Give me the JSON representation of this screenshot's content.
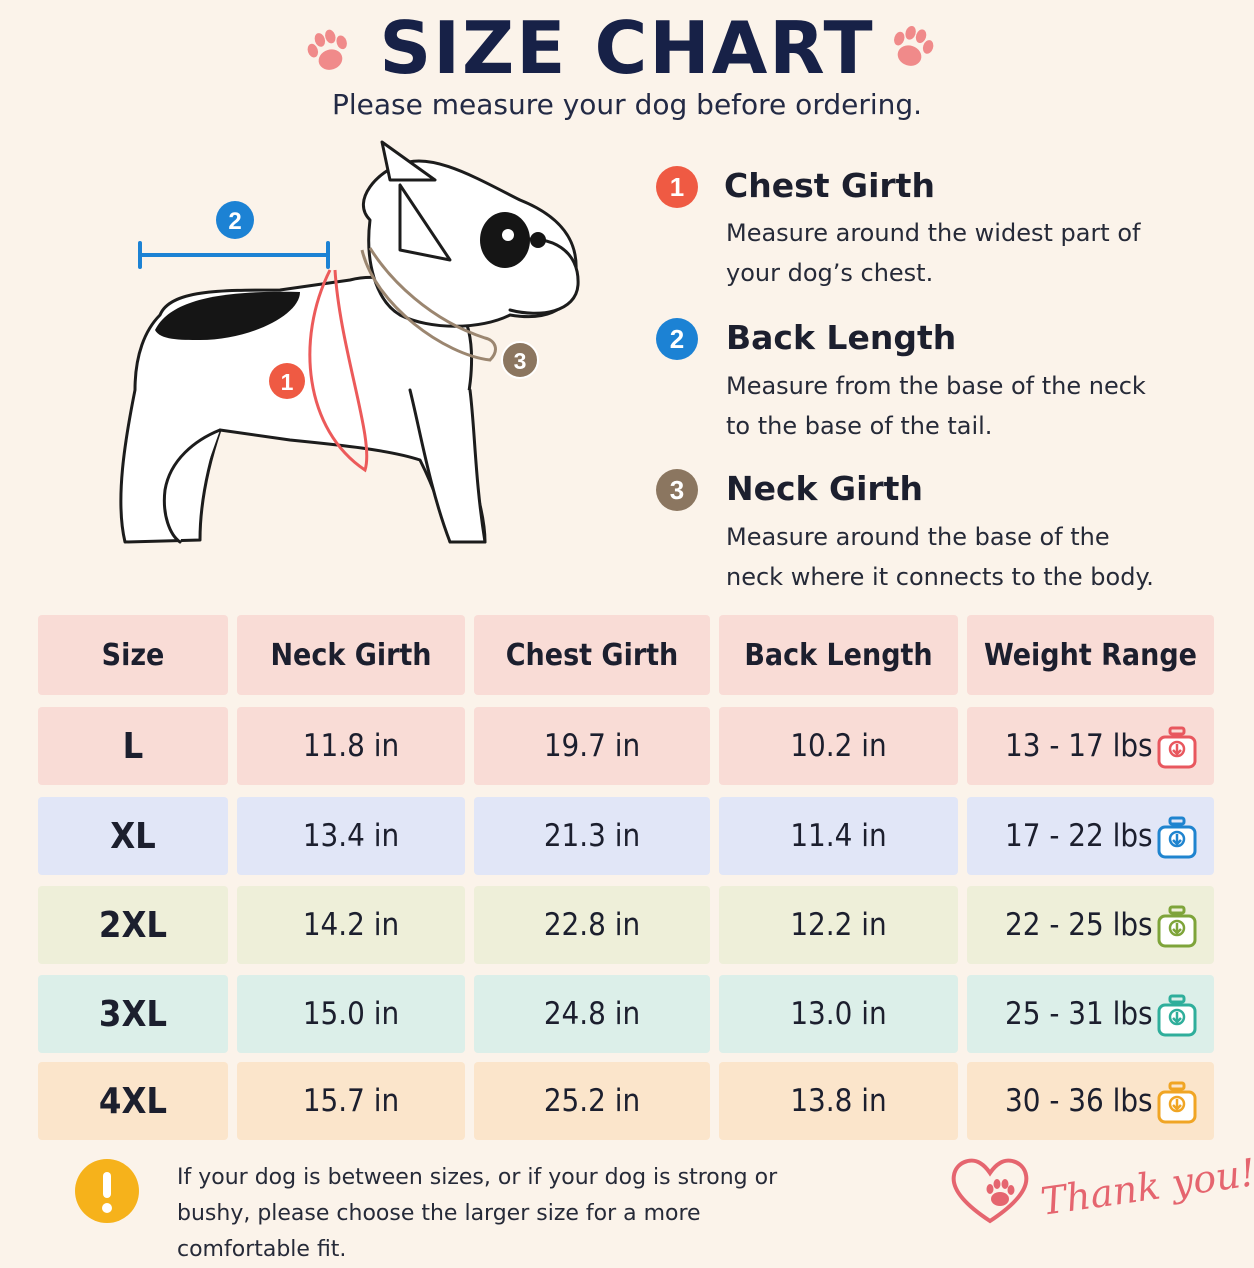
{
  "header": {
    "title": "SIZE CHART",
    "subtitle": "Please measure your dog before ordering."
  },
  "illustration": {
    "marker_1": "1",
    "marker_2": "2",
    "marker_3": "3"
  },
  "legend": [
    {
      "number": "1",
      "color": "#ef5a43",
      "title": "Chest Girth",
      "desc": "Measure around the widest part of your dog’s chest."
    },
    {
      "number": "2",
      "color": "#1c82d4",
      "title": "Back Length",
      "desc": "Measure from the base of the neck to the base of the tail."
    },
    {
      "number": "3",
      "color": "#8b7660",
      "title": "Neck Girth",
      "desc": "Measure around the base of the neck where it connects to the body."
    }
  ],
  "table": {
    "headers": [
      "Size",
      "Neck Girth",
      "Chest Girth",
      "Back Length",
      "Weight Range"
    ],
    "header_color": "#f9dcd6",
    "rows": [
      {
        "size": "L",
        "neck": "11.8 in",
        "chest": "19.7 in",
        "back": "10.2 in",
        "weight": "13 - 17 lbs",
        "bg": "#f9dcd6",
        "icon_color": "#e8575e",
        "icon": "scale-icon"
      },
      {
        "size": "XL",
        "neck": "13.4 in",
        "chest": "21.3 in",
        "back": "11.4 in",
        "weight": "17 - 22 lbs",
        "bg": "#e1e6f7",
        "icon_color": "#1f84cf",
        "icon": "scale-icon"
      },
      {
        "size": "2XL",
        "neck": "14.2 in",
        "chest": "22.8 in",
        "back": "12.2 in",
        "weight": "22 - 25 lbs",
        "bg": "#eeefd9",
        "icon_color": "#7ea43a",
        "icon": "scale-icon"
      },
      {
        "size": "3XL",
        "neck": "15.0 in",
        "chest": "24.8 in",
        "back": "13.0 in",
        "weight": "25 - 31 lbs",
        "bg": "#dcefe9",
        "icon_color": "#2fae9b",
        "icon": "scale-icon"
      },
      {
        "size": "4XL",
        "neck": "15.7 in",
        "chest": "25.2 in",
        "back": "13.8 in",
        "weight": "30 - 36 lbs",
        "bg": "#fbe5cb",
        "icon_color": "#f0a524",
        "icon": "scale-icon"
      }
    ]
  },
  "footer": {
    "warning_icon": "exclamation-icon",
    "warning_color": "#f6b21b",
    "note": "If your dog is between sizes, or if your dog is strong or bushy, please choose the larger size for a more comfortable fit.",
    "thanks": "Thank you!",
    "thanks_icon": "heart-paw-icon"
  }
}
